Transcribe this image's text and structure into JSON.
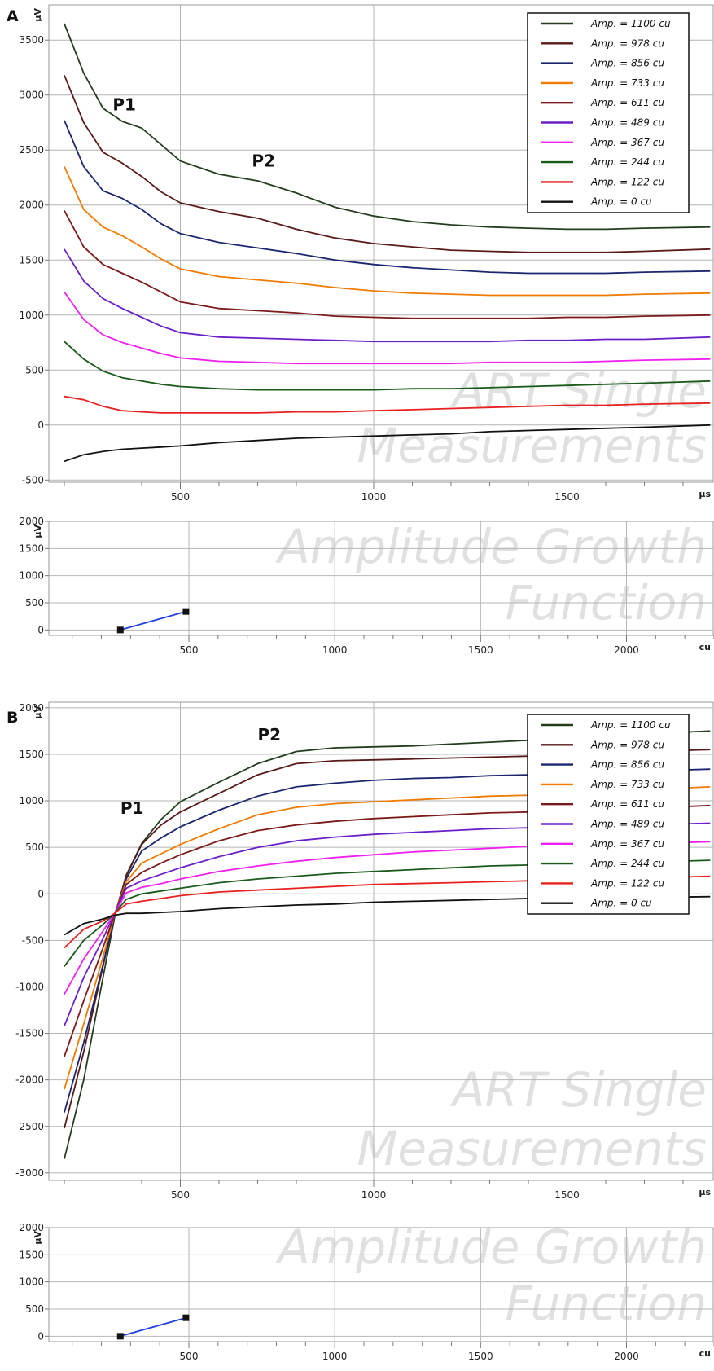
{
  "chart_data": [
    {
      "panel": "A",
      "type": "line",
      "xlim": [
        160,
        1880
      ],
      "ylim": [
        -520,
        3820
      ],
      "xticks": [
        500,
        1000,
        1500
      ],
      "yticks": [
        -500,
        0,
        500,
        1000,
        1500,
        2000,
        2500,
        3000,
        3500
      ],
      "xunit": "μs",
      "yunit": "μV",
      "grid": true,
      "legend_position": "top-right",
      "watermark": [
        "ART Single",
        "Measurements"
      ],
      "annotations": [
        {
          "text": "P1",
          "x": 355,
          "y": 2860
        },
        {
          "text": "P2",
          "x": 715,
          "y": 2350
        }
      ],
      "x": [
        200,
        250,
        300,
        350,
        400,
        450,
        500,
        600,
        700,
        800,
        900,
        1000,
        1100,
        1200,
        1300,
        1400,
        1500,
        1600,
        1700,
        1870
      ],
      "series": [
        {
          "name": "Amp. = 1100 cu",
          "color": "#243d1e",
          "values": [
            3650,
            3200,
            2880,
            2760,
            2700,
            2550,
            2400,
            2280,
            2220,
            2110,
            1980,
            1900,
            1850,
            1820,
            1800,
            1790,
            1780,
            1780,
            1790,
            1800
          ]
        },
        {
          "name": "Amp. = 978 cu",
          "color": "#5a1a1a",
          "values": [
            3180,
            2750,
            2480,
            2380,
            2260,
            2120,
            2020,
            1940,
            1880,
            1780,
            1700,
            1650,
            1620,
            1590,
            1580,
            1570,
            1570,
            1570,
            1580,
            1600
          ]
        },
        {
          "name": "Amp. = 856 cu",
          "color": "#1c2670",
          "values": [
            2770,
            2350,
            2130,
            2060,
            1960,
            1830,
            1740,
            1660,
            1610,
            1560,
            1500,
            1460,
            1430,
            1410,
            1390,
            1380,
            1380,
            1380,
            1390,
            1400
          ]
        },
        {
          "name": "Amp. = 733 cu",
          "color": "#f07b00",
          "values": [
            2350,
            1960,
            1800,
            1720,
            1620,
            1510,
            1420,
            1350,
            1320,
            1290,
            1250,
            1220,
            1200,
            1190,
            1180,
            1180,
            1180,
            1180,
            1190,
            1200
          ]
        },
        {
          "name": "Amp. = 611 cu",
          "color": "#7a1a1a",
          "values": [
            1950,
            1620,
            1460,
            1380,
            1300,
            1210,
            1120,
            1060,
            1040,
            1020,
            990,
            980,
            970,
            970,
            970,
            970,
            980,
            980,
            990,
            1000
          ]
        },
        {
          "name": "Amp. = 489 cu",
          "color": "#6a20c8",
          "values": [
            1600,
            1310,
            1150,
            1060,
            980,
            900,
            840,
            800,
            790,
            780,
            770,
            760,
            760,
            760,
            760,
            770,
            770,
            780,
            780,
            800
          ]
        },
        {
          "name": "Amp. = 367 cu",
          "color": "#f020f0",
          "values": [
            1210,
            960,
            820,
            750,
            700,
            650,
            610,
            580,
            570,
            560,
            560,
            560,
            560,
            560,
            570,
            570,
            570,
            580,
            590,
            600
          ]
        },
        {
          "name": "Amp. = 244 cu",
          "color": "#1a5a1a",
          "values": [
            760,
            600,
            490,
            430,
            400,
            370,
            350,
            330,
            320,
            320,
            320,
            320,
            330,
            330,
            340,
            350,
            360,
            370,
            380,
            400
          ]
        },
        {
          "name": "Amp. = 122 cu",
          "color": "#e82020",
          "values": [
            260,
            230,
            170,
            130,
            120,
            110,
            110,
            110,
            110,
            120,
            120,
            130,
            140,
            150,
            160,
            170,
            180,
            180,
            190,
            200
          ]
        },
        {
          "name": "Amp. = 0 cu",
          "color": "#111111",
          "values": [
            -330,
            -270,
            -240,
            -220,
            -210,
            -200,
            -190,
            -160,
            -140,
            -120,
            -110,
            -100,
            -90,
            -80,
            -60,
            -50,
            -40,
            -30,
            -20,
            0
          ]
        }
      ]
    },
    {
      "panel": "A",
      "type": "line",
      "xlim": [
        20,
        2300
      ],
      "ylim": [
        -100,
        2000
      ],
      "xticks": [
        500,
        1000,
        1500,
        2000
      ],
      "yticks": [
        0,
        500,
        1000,
        1500,
        2000
      ],
      "xunit": "cu",
      "yunit": "μV",
      "grid": true,
      "watermark": [
        "Amplitude Growth",
        "Function"
      ],
      "x": [
        265,
        490
      ],
      "series": [
        {
          "color": "#1f3fe0",
          "values": [
            0,
            340
          ]
        }
      ]
    },
    {
      "panel": "B",
      "type": "line",
      "xlim": [
        160,
        1880
      ],
      "ylim": [
        -3080,
        2060
      ],
      "xticks": [
        500,
        1000,
        1500
      ],
      "yticks": [
        -3000,
        -2500,
        -2000,
        -1500,
        -1000,
        -500,
        0,
        500,
        1000,
        1500,
        2000
      ],
      "xunit": "μs",
      "yunit": "μV",
      "grid": true,
      "legend_position": "top-right",
      "watermark": [
        "ART Single",
        "Measurements"
      ],
      "annotations": [
        {
          "text": "P1",
          "x": 375,
          "y": 860
        },
        {
          "text": "P2",
          "x": 730,
          "y": 1650
        }
      ],
      "x": [
        200,
        250,
        300,
        330,
        360,
        400,
        450,
        500,
        600,
        700,
        800,
        900,
        1000,
        1100,
        1200,
        1300,
        1400,
        1500,
        1600,
        1700,
        1870
      ],
      "series": [
        {
          "name": "Amp. = 1100 cu",
          "color": "#243d1e",
          "values": [
            -2850,
            -2000,
            -900,
            -250,
            200,
            540,
            800,
            990,
            1200,
            1400,
            1530,
            1570,
            1580,
            1590,
            1610,
            1630,
            1650,
            1680,
            1700,
            1720,
            1750
          ]
        },
        {
          "name": "Amp. = 978 cu",
          "color": "#5a1a1a",
          "values": [
            -2520,
            -1700,
            -780,
            -230,
            190,
            530,
            740,
            880,
            1080,
            1280,
            1400,
            1430,
            1440,
            1450,
            1460,
            1470,
            1480,
            1490,
            1510,
            1530,
            1550
          ]
        },
        {
          "name": "Amp. = 856 cu",
          "color": "#1c2670",
          "values": [
            -2350,
            -1600,
            -760,
            -230,
            160,
            460,
            600,
            720,
            900,
            1050,
            1150,
            1190,
            1220,
            1240,
            1250,
            1270,
            1280,
            1290,
            1300,
            1320,
            1340
          ]
        },
        {
          "name": "Amp. = 733 cu",
          "color": "#f07b00",
          "values": [
            -2100,
            -1400,
            -680,
            -220,
            130,
            330,
            430,
            530,
            700,
            850,
            930,
            970,
            990,
            1010,
            1030,
            1050,
            1060,
            1080,
            1100,
            1120,
            1150
          ]
        },
        {
          "name": "Amp. = 611 cu",
          "color": "#7a1a1a",
          "values": [
            -1750,
            -1150,
            -580,
            -220,
            100,
            230,
            330,
            420,
            570,
            680,
            740,
            780,
            810,
            830,
            850,
            870,
            880,
            890,
            900,
            920,
            950
          ]
        },
        {
          "name": "Amp. = 489 cu",
          "color": "#6a20c8",
          "values": [
            -1420,
            -900,
            -480,
            -210,
            60,
            140,
            210,
            280,
            400,
            500,
            570,
            610,
            640,
            660,
            680,
            700,
            710,
            720,
            730,
            740,
            760
          ]
        },
        {
          "name": "Amp. = 367 cu",
          "color": "#f020f0",
          "values": [
            -1080,
            -700,
            -400,
            -210,
            10,
            70,
            110,
            160,
            240,
            300,
            350,
            390,
            420,
            450,
            470,
            490,
            510,
            520,
            530,
            540,
            560
          ]
        },
        {
          "name": "Amp. = 244 cu",
          "color": "#1a5a1a",
          "values": [
            -780,
            -500,
            -330,
            -210,
            -60,
            0,
            30,
            60,
            120,
            160,
            190,
            220,
            240,
            260,
            280,
            300,
            310,
            320,
            330,
            340,
            360
          ]
        },
        {
          "name": "Amp. = 122 cu",
          "color": "#e82020",
          "values": [
            -580,
            -380,
            -290,
            -210,
            -110,
            -80,
            -50,
            -20,
            20,
            40,
            60,
            80,
            100,
            110,
            120,
            130,
            140,
            150,
            160,
            170,
            190
          ]
        },
        {
          "name": "Amp. = 0 cu",
          "color": "#111111",
          "values": [
            -440,
            -320,
            -270,
            -230,
            -210,
            -210,
            -200,
            -190,
            -160,
            -140,
            -120,
            -110,
            -90,
            -80,
            -70,
            -60,
            -50,
            -50,
            -40,
            -40,
            -30
          ]
        }
      ]
    },
    {
      "panel": "B",
      "type": "line",
      "xlim": [
        20,
        2300
      ],
      "ylim": [
        -100,
        2000
      ],
      "xticks": [
        500,
        1000,
        1500,
        2000
      ],
      "yticks": [
        0,
        500,
        1000,
        1500,
        2000
      ],
      "xunit": "cu",
      "yunit": "μV",
      "grid": true,
      "watermark": [
        "Amplitude Growth",
        "Function"
      ],
      "x": [
        265,
        490
      ],
      "series": [
        {
          "color": "#1f3fe0",
          "values": [
            0,
            340
          ]
        }
      ]
    }
  ]
}
